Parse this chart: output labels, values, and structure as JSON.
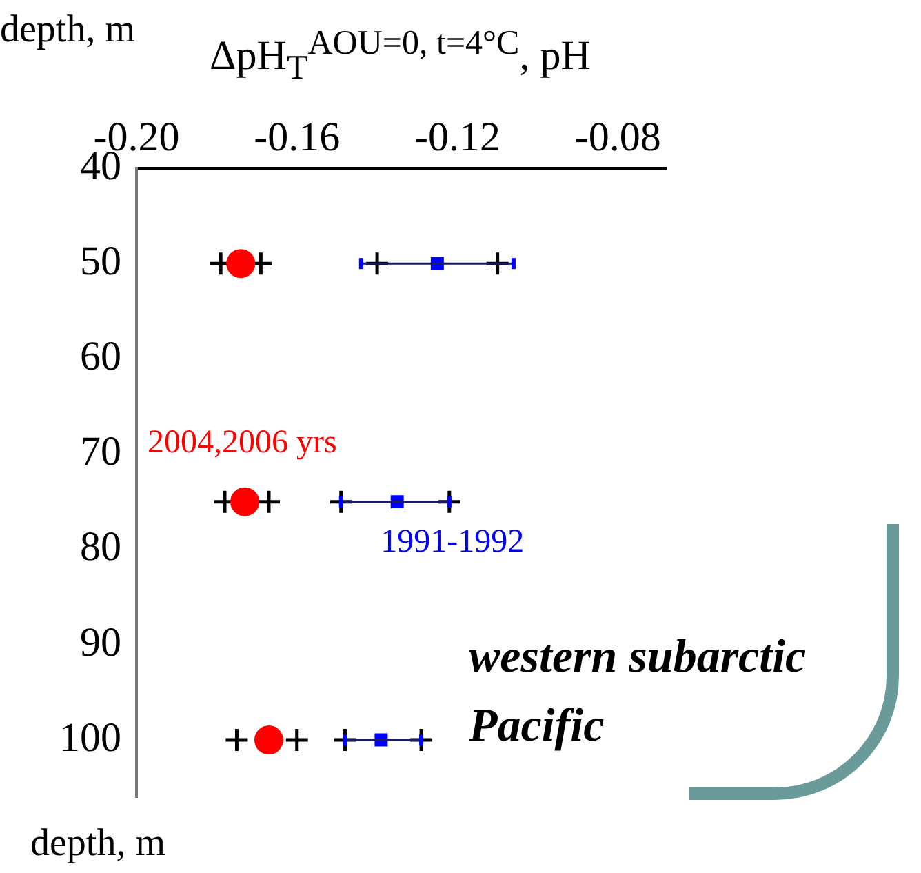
{
  "chart_data": {
    "type": "scatter",
    "xlabel": "ΔpH$_{T}$$^{AOU=0, t=4°C}$, pH",
    "ylabel": "depth, m",
    "annotations": [
      "western subarctic Pacific",
      "depth, m"
    ],
    "xlim": [
      -0.2,
      -0.068
    ],
    "xticks": [
      {
        "value": -0.2,
        "label": "-0.20"
      },
      {
        "value": -0.16,
        "label": "-0.16"
      },
      {
        "value": -0.12,
        "label": "-0.12"
      },
      {
        "value": -0.08,
        "label": "-0.08"
      }
    ],
    "ylim": [
      106,
      40
    ],
    "yticks": [
      40,
      50,
      60,
      70,
      80,
      90,
      100
    ],
    "grid": false,
    "legend": false,
    "series": [
      {
        "name": "2004,2006 yrs",
        "color": "#ff0000",
        "marker": "circle",
        "x": [
          -0.174,
          -0.173,
          -0.167
        ],
        "values": [
          50,
          75,
          100
        ]
      },
      {
        "name": "1991-1992",
        "color": "#0000ff",
        "marker": "square",
        "x": [
          -0.125,
          -0.135,
          -0.139
        ],
        "values": [
          50,
          75,
          100
        ],
        "xerrors": [
          [
            -0.144,
            -0.106
          ],
          [
            -0.149,
            -0.122
          ],
          [
            -0.148,
            -0.129
          ]
        ]
      },
      {
        "color": "#000000",
        "marker": "cross",
        "x": [
          -0.179,
          -0.169,
          -0.14,
          -0.11,
          -0.178,
          -0.167,
          -0.149,
          -0.122,
          -0.175,
          -0.16,
          -0.148,
          -0.129
        ],
        "values": [
          50,
          50,
          50,
          50,
          75,
          75,
          75,
          75,
          100,
          100,
          100,
          100
        ]
      }
    ]
  }
}
